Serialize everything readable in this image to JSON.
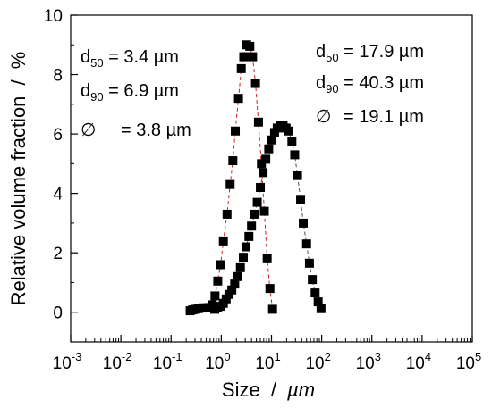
{
  "chart_data": {
    "type": "scatter",
    "xlabel": "Size",
    "xunit": "µm",
    "ylabel": "Relative volume fraction",
    "yunit": "%",
    "xscale": "log",
    "xlim": [
      0.001,
      100000
    ],
    "ylim": [
      -1,
      10
    ],
    "y_ticks": [
      0,
      2,
      4,
      6,
      8,
      10
    ],
    "x_ticks": [
      {
        "base": "10",
        "exp": "-3"
      },
      {
        "base": "10",
        "exp": "-2"
      },
      {
        "base": "10",
        "exp": "-1"
      },
      {
        "base": "10",
        "exp": "0"
      },
      {
        "base": "10",
        "exp": "1"
      },
      {
        "base": "10",
        "exp": "2"
      },
      {
        "base": "10",
        "exp": "3"
      },
      {
        "base": "10",
        "exp": "4"
      },
      {
        "base": "10",
        "exp": "5"
      }
    ],
    "grid": false,
    "series": [
      {
        "line_color": "#cc2222",
        "marker_color": "#000000",
        "points": [
          [
            0.24,
            0.05
          ],
          [
            0.27,
            0.08
          ],
          [
            0.31,
            0.1
          ],
          [
            0.35,
            0.12
          ],
          [
            0.4,
            0.14
          ],
          [
            0.45,
            0.15
          ],
          [
            0.51,
            0.15
          ],
          [
            0.58,
            0.16
          ],
          [
            0.66,
            0.25
          ],
          [
            0.75,
            0.55
          ],
          [
            0.85,
            1.05
          ],
          [
            0.97,
            1.6
          ],
          [
            1.1,
            2.4
          ],
          [
            1.3,
            3.3
          ],
          [
            1.5,
            4.3
          ],
          [
            1.7,
            5.1
          ],
          [
            1.9,
            6.1
          ],
          [
            2.2,
            7.2
          ],
          [
            2.5,
            8.2
          ],
          [
            2.8,
            8.6
          ],
          [
            3.2,
            9.0
          ],
          [
            3.7,
            8.95
          ],
          [
            4.2,
            8.6
          ],
          [
            4.8,
            7.7
          ],
          [
            5.5,
            6.4
          ],
          [
            6.3,
            5.0
          ],
          [
            7.2,
            3.4
          ],
          [
            8.2,
            1.8
          ],
          [
            9.3,
            0.8
          ],
          [
            10.5,
            0.1
          ]
        ]
      },
      {
        "line_color": "#555555",
        "marker_color": "#000000",
        "points": [
          [
            0.74,
            0.1
          ],
          [
            0.84,
            0.15
          ],
          [
            0.96,
            0.2
          ],
          [
            1.1,
            0.3
          ],
          [
            1.25,
            0.45
          ],
          [
            1.42,
            0.6
          ],
          [
            1.62,
            0.75
          ],
          [
            1.85,
            0.95
          ],
          [
            2.1,
            1.2
          ],
          [
            2.4,
            1.5
          ],
          [
            2.75,
            1.85
          ],
          [
            3.1,
            2.2
          ],
          [
            3.55,
            2.55
          ],
          [
            4.0,
            2.9
          ],
          [
            4.6,
            3.3
          ],
          [
            5.2,
            3.7
          ],
          [
            6.0,
            4.2
          ],
          [
            6.8,
            4.7
          ],
          [
            7.7,
            5.15
          ],
          [
            8.8,
            5.5
          ],
          [
            10.0,
            5.8
          ],
          [
            11.5,
            6.05
          ],
          [
            13.0,
            6.2
          ],
          [
            15.0,
            6.3
          ],
          [
            17.0,
            6.3
          ],
          [
            19.5,
            6.2
          ],
          [
            22.0,
            6.1
          ],
          [
            25.5,
            5.75
          ],
          [
            29.0,
            5.3
          ],
          [
            33.0,
            4.6
          ],
          [
            38.0,
            3.8
          ],
          [
            43.0,
            3.0
          ],
          [
            50.0,
            2.3
          ],
          [
            57.0,
            1.65
          ],
          [
            65.0,
            1.1
          ],
          [
            74.0,
            0.65
          ],
          [
            85.0,
            0.35
          ],
          [
            97.0,
            0.12
          ]
        ]
      }
    ],
    "annotations": [
      {
        "sym": "d",
        "sub": "50",
        "rest": " = 3.4 µm"
      },
      {
        "sym": "d",
        "sub": "90",
        "rest": " = 6.9 µm"
      },
      {
        "sym": "∅",
        "sub": "",
        "rest": " = 3.8 µm"
      },
      {
        "sym": "d",
        "sub": "50",
        "rest": " = 17.9 µm"
      },
      {
        "sym": "d",
        "sub": "90",
        "rest": " = 40.3 µm"
      },
      {
        "sym": "∅",
        "sub": "",
        "rest": " = 19.1 µm"
      }
    ]
  }
}
